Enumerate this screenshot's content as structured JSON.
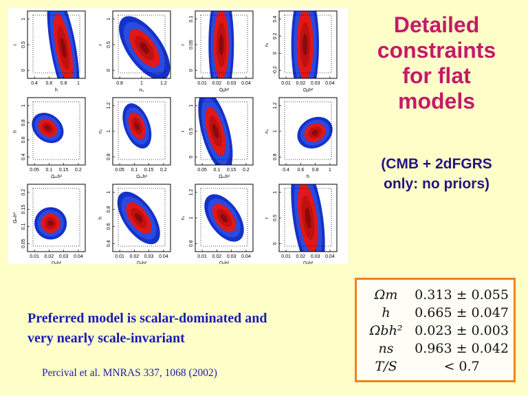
{
  "title_lines": [
    "Detailed",
    "constraints",
    "for flat",
    "models"
  ],
  "subtitle_lines": [
    "(CMB + 2dFGRS",
    "only: no priors)"
  ],
  "preferred_lines": [
    "Preferred model is scalar-dominated and",
    "very nearly scale-invariant"
  ],
  "citation": "Percival et al. MNRAS 337, 1068 (2002)",
  "results": [
    {
      "param": "Ωm",
      "value": "0.313 ± 0.055"
    },
    {
      "param": "h",
      "value": "0.665 ± 0.047"
    },
    {
      "param": "Ωbh²",
      "value": "0.023 ± 0.003"
    },
    {
      "param": "ns",
      "value": "0.963 ± 0.042"
    },
    {
      "param": "T/S",
      "value": "< 0.7"
    }
  ],
  "colors": {
    "title": "#c41a68",
    "subtitle": "#241480",
    "body_text": "#1a1ab4",
    "background": "#fefec8",
    "box_border": "#f08218",
    "contour_outer": "#1432c8",
    "contour_mid": "#e01818",
    "contour_inner": "#8a0a0a"
  },
  "figure": {
    "panels": [
      {
        "row": 0,
        "col": 0,
        "xlabel": "h",
        "ylabel": "r",
        "xticks": [
          "0.4",
          "0.6",
          "0.8",
          "1"
        ],
        "yticks": [
          "0",
          "0.5",
          "1"
        ]
      },
      {
        "row": 0,
        "col": 1,
        "xlabel": "nₛ",
        "ylabel": "r",
        "xticks": [
          "0.8",
          "1",
          "1.2"
        ],
        "yticks": [
          "0",
          "0.5",
          "1"
        ]
      },
      {
        "row": 0,
        "col": 2,
        "xlabel": "Ωᵦh²",
        "ylabel": "r",
        "xticks": [
          "0.01",
          "0.02",
          "0.03",
          "0.04"
        ],
        "yticks": [
          "0",
          "0.05",
          "0.1"
        ]
      },
      {
        "row": 0,
        "col": 3,
        "xlabel": "Ωᵦh²",
        "ylabel": "nₜ",
        "xticks": [
          "0.01",
          "0.02",
          "0.03",
          "0.04"
        ],
        "yticks": [
          "-0.2",
          "0",
          "0.2",
          "0.4"
        ]
      },
      {
        "row": 1,
        "col": 0,
        "xlabel": "Ωₘh²",
        "ylabel": "h",
        "xticks": [
          "0.05",
          "0.1",
          "0.15",
          "0.2"
        ],
        "yticks": [
          "0.4",
          "0.6",
          "0.8",
          "1"
        ]
      },
      {
        "row": 1,
        "col": 1,
        "xlabel": "Ωₘh²",
        "ylabel": "nₛ",
        "xticks": [
          "0.05",
          "0.1",
          "0.15",
          "0.2"
        ],
        "yticks": [
          "0.8",
          "1",
          "1.2"
        ]
      },
      {
        "row": 1,
        "col": 2,
        "xlabel": "Ωₘh²",
        "ylabel": "r",
        "xticks": [
          "0.05",
          "0.1",
          "0.15",
          "0.2"
        ],
        "yticks": [
          "0",
          "0.5",
          "1"
        ]
      },
      {
        "row": 1,
        "col": 3,
        "xlabel": "h",
        "ylabel": "nₛ",
        "xticks": [
          "0.4",
          "0.6",
          "0.8",
          "1"
        ],
        "yticks": [
          "0.8",
          "1",
          "1.2"
        ]
      },
      {
        "row": 2,
        "col": 0,
        "xlabel": "Ωᵦh²",
        "ylabel": "Ωₘh²",
        "xticks": [
          "0.01",
          "0.02",
          "0.03",
          "0.04"
        ],
        "yticks": [
          "0.05",
          "0.1",
          "0.15",
          "0.2"
        ]
      },
      {
        "row": 2,
        "col": 1,
        "xlabel": "Ωᵦh²",
        "ylabel": "h",
        "xticks": [
          "0.01",
          "0.02",
          "0.03",
          "0.04"
        ],
        "yticks": [
          "0.4",
          "0.6",
          "0.8",
          "1"
        ]
      },
      {
        "row": 2,
        "col": 2,
        "xlabel": "Ωᵦh²",
        "ylabel": "nₛ",
        "xticks": [
          "0.01",
          "0.02",
          "0.03",
          "0.04"
        ],
        "yticks": [
          "0.8",
          "1",
          "1.2"
        ]
      },
      {
        "row": 2,
        "col": 3,
        "xlabel": "Ωᵦh²",
        "ylabel": "r",
        "xticks": [
          "0.01",
          "0.02",
          "0.03",
          "0.04"
        ],
        "yticks": [
          "0",
          "0.5",
          "1"
        ]
      }
    ]
  }
}
